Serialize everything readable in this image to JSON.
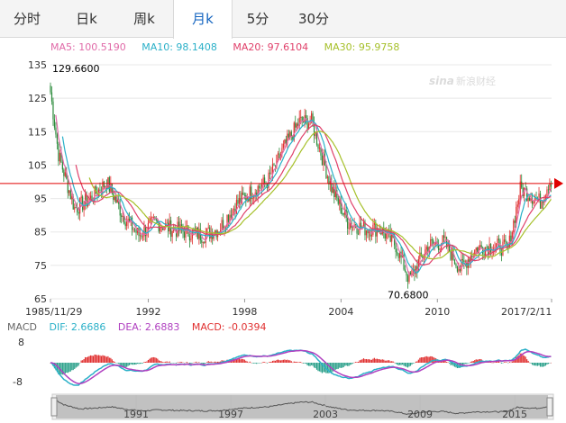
{
  "tabs": [
    {
      "label": "分时",
      "active": false
    },
    {
      "label": "日k",
      "active": false
    },
    {
      "label": "周k",
      "active": false
    },
    {
      "label": "月k",
      "active": true
    },
    {
      "label": "5分",
      "active": false
    },
    {
      "label": "30分",
      "active": false
    }
  ],
  "ma_legend": {
    "ma5": "MA5: 100.5190",
    "ma10": "MA10: 98.1408",
    "ma20": "MA20: 97.6104",
    "ma30": "MA30: 95.9758",
    "colors": {
      "ma5": "#e06aa8",
      "ma10": "#2ab0c8",
      "ma20": "#e0406a",
      "ma30": "#a6c02a"
    }
  },
  "watermark": "新浪财经",
  "price_axis": {
    "ticks": [
      "135",
      "125",
      "115",
      "105",
      "95",
      "85",
      "75",
      "65"
    ]
  },
  "annotations": {
    "high": "129.6600",
    "low": "70.6800"
  },
  "date_axis": {
    "labels": [
      "1985/11/29",
      "1992",
      "1998",
      "2004",
      "2010",
      "2017/2/11"
    ]
  },
  "macd_legend": {
    "title": "MACD",
    "dif": "DIF: 2.6686",
    "dea": "DEA: 2.6883",
    "macd": "MACD: -0.0394",
    "colors": {
      "title": "#666666",
      "dif": "#2ab0c8",
      "dea": "#b040c0",
      "macd": "#e03030"
    }
  },
  "macd_axis": {
    "ticks": [
      "8",
      "-8"
    ]
  },
  "navigator": {
    "labels": [
      "1991",
      "1997",
      "2003",
      "2009",
      "2015"
    ]
  },
  "colors": {
    "up": "#e03030",
    "down": "#2a8a3a",
    "reference_line": "#e00000",
    "grid": "#e8e8e8"
  },
  "chart_data": {
    "type": "candlestick",
    "period": "monthly",
    "ylim": [
      65,
      135
    ],
    "x_range": [
      "1985/11/29",
      "2017/2/11"
    ],
    "reference_value": 99.5,
    "approx_close_path": [
      [
        "1985/11",
        129.66
      ],
      [
        "1986/06",
        108
      ],
      [
        "1987/06",
        92
      ],
      [
        "1988/06",
        95
      ],
      [
        "1989/06",
        100
      ],
      [
        "1990/06",
        90
      ],
      [
        "1991/06",
        84
      ],
      [
        "1992/06",
        88
      ],
      [
        "1993/06",
        86
      ],
      [
        "1994/06",
        85
      ],
      [
        "1995/06",
        84
      ],
      [
        "1996/06",
        86
      ],
      [
        "1997/06",
        93
      ],
      [
        "1998/06",
        97
      ],
      [
        "1999/06",
        100
      ],
      [
        "2000/06",
        110
      ],
      [
        "2001/06",
        118
      ],
      [
        "2002/03",
        118
      ],
      [
        "2003/06",
        98
      ],
      [
        "2004/06",
        88
      ],
      [
        "2005/06",
        86
      ],
      [
        "2006/06",
        86
      ],
      [
        "2007/06",
        81
      ],
      [
        "2008/04",
        70.68
      ],
      [
        "2009/06",
        81
      ],
      [
        "2010/06",
        82
      ],
      [
        "2011/06",
        74
      ],
      [
        "2012/06",
        80
      ],
      [
        "2013/06",
        81
      ],
      [
        "2014/06",
        80
      ],
      [
        "2015/03",
        98
      ],
      [
        "2016/06",
        94
      ],
      [
        "2017/01",
        100.5
      ]
    ],
    "ma_last": {
      "MA5": 100.519,
      "MA10": 98.1408,
      "MA20": 97.6104,
      "MA30": 95.9758
    },
    "macd": {
      "DIF": 2.6686,
      "DEA": 2.6883,
      "MACD": -0.0394,
      "ylim": [
        -8,
        8
      ]
    }
  }
}
